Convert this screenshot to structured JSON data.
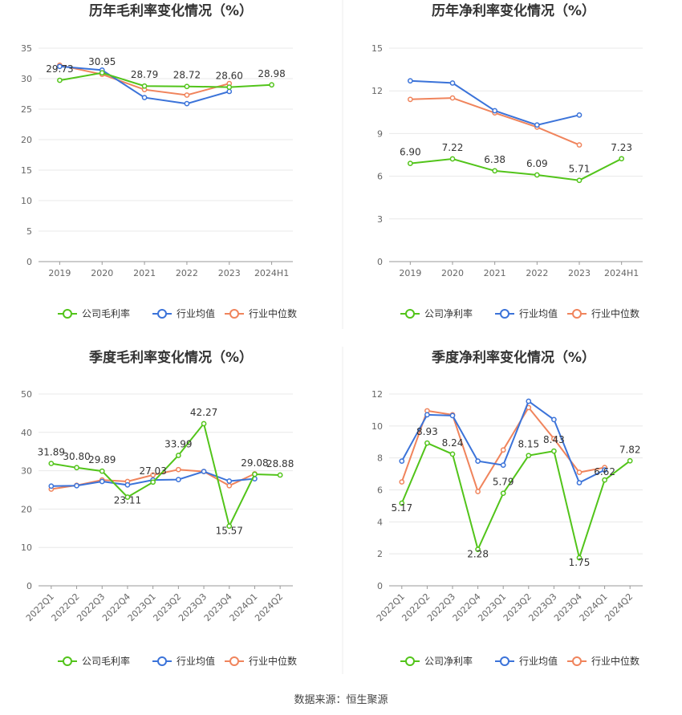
{
  "source_note": "数据来源：恒生聚源",
  "colors": {
    "company": "#52c41a",
    "avg": "#3b73d9",
    "median": "#f0845c",
    "grid": "#e8e8e8",
    "axis": "#999999"
  },
  "chart_data": [
    {
      "type": "line",
      "title": "历年毛利率变化情况（%）",
      "categories": [
        "2019",
        "2020",
        "2021",
        "2022",
        "2023",
        "2024H1"
      ],
      "ylim": [
        0,
        35
      ],
      "yticks": [
        0,
        5,
        10,
        15,
        20,
        25,
        30,
        35
      ],
      "series": [
        {
          "name": "公司毛利率",
          "key": "company",
          "values": [
            29.73,
            30.95,
            28.79,
            28.72,
            28.6,
            28.98
          ],
          "labels": [
            "29.73",
            "30.95",
            "28.79",
            "28.72",
            "28.60",
            "28.98"
          ]
        },
        {
          "name": "行业均值",
          "key": "avg",
          "values": [
            32.0,
            31.4,
            26.9,
            25.9,
            27.9,
            null
          ]
        },
        {
          "name": "行业中位数",
          "key": "median",
          "values": [
            32.2,
            30.7,
            28.2,
            27.3,
            29.2,
            null
          ]
        }
      ]
    },
    {
      "type": "line",
      "title": "历年净利率变化情况（%）",
      "categories": [
        "2019",
        "2020",
        "2021",
        "2022",
        "2023",
        "2024H1"
      ],
      "ylim": [
        0,
        15
      ],
      "yticks": [
        0,
        3,
        6,
        9,
        12,
        15
      ],
      "series": [
        {
          "name": "公司净利率",
          "key": "company",
          "values": [
            6.9,
            7.22,
            6.38,
            6.09,
            5.71,
            7.23
          ],
          "labels": [
            "6.90",
            "7.22",
            "6.38",
            "6.09",
            "5.71",
            "7.23"
          ]
        },
        {
          "name": "行业均值",
          "key": "avg",
          "values": [
            12.7,
            12.55,
            10.6,
            9.6,
            10.3,
            null
          ]
        },
        {
          "name": "行业中位数",
          "key": "median",
          "values": [
            11.4,
            11.5,
            10.45,
            9.45,
            8.2,
            null
          ]
        }
      ]
    },
    {
      "type": "line",
      "title": "季度毛利率变化情况（%）",
      "categories": [
        "2022Q1",
        "2022Q2",
        "2022Q3",
        "2022Q4",
        "2023Q1",
        "2023Q2",
        "2023Q3",
        "2023Q4",
        "2024Q1",
        "2024Q2"
      ],
      "ylim": [
        0,
        50
      ],
      "yticks": [
        0,
        10,
        20,
        30,
        40,
        50
      ],
      "series": [
        {
          "name": "公司毛利率",
          "key": "company",
          "values": [
            31.89,
            30.8,
            29.89,
            23.11,
            27.03,
            33.99,
            42.27,
            15.57,
            29.08,
            28.88
          ],
          "labels": [
            "31.89",
            "30.80",
            "29.89",
            "23.11",
            "27.03",
            "33.99",
            "42.27",
            "15.57",
            "29.08",
            "28.88"
          ]
        },
        {
          "name": "行业均值",
          "key": "avg",
          "values": [
            26.0,
            26.1,
            27.2,
            26.3,
            27.6,
            27.7,
            29.8,
            27.3,
            27.9,
            null
          ]
        },
        {
          "name": "行业中位数",
          "key": "median",
          "values": [
            25.2,
            26.2,
            27.6,
            27.2,
            28.9,
            30.3,
            29.8,
            26.1,
            29.2,
            null
          ]
        }
      ]
    },
    {
      "type": "line",
      "title": "季度净利率变化情况（%）",
      "categories": [
        "2022Q1",
        "2022Q2",
        "2022Q3",
        "2022Q4",
        "2023Q1",
        "2023Q2",
        "2023Q3",
        "2023Q4",
        "2024Q1",
        "2024Q2"
      ],
      "ylim": [
        0,
        12
      ],
      "yticks": [
        0,
        2,
        4,
        6,
        8,
        10,
        12
      ],
      "series": [
        {
          "name": "公司净利率",
          "key": "company",
          "values": [
            5.17,
            8.93,
            8.24,
            2.28,
            5.79,
            8.15,
            8.43,
            1.75,
            6.62,
            7.82
          ],
          "labels": [
            "5.17",
            "8.93",
            "8.24",
            "2.28",
            "5.79",
            "8.15",
            "8.43",
            "1.75",
            "6.62",
            "7.82"
          ]
        },
        {
          "name": "行业均值",
          "key": "avg",
          "values": [
            7.8,
            10.7,
            10.65,
            7.8,
            7.55,
            11.55,
            10.4,
            6.45,
            7.25,
            null
          ]
        },
        {
          "name": "行业中位数",
          "key": "median",
          "values": [
            6.5,
            10.95,
            10.7,
            5.9,
            8.5,
            11.15,
            9.2,
            7.1,
            7.4,
            null
          ]
        }
      ]
    }
  ]
}
